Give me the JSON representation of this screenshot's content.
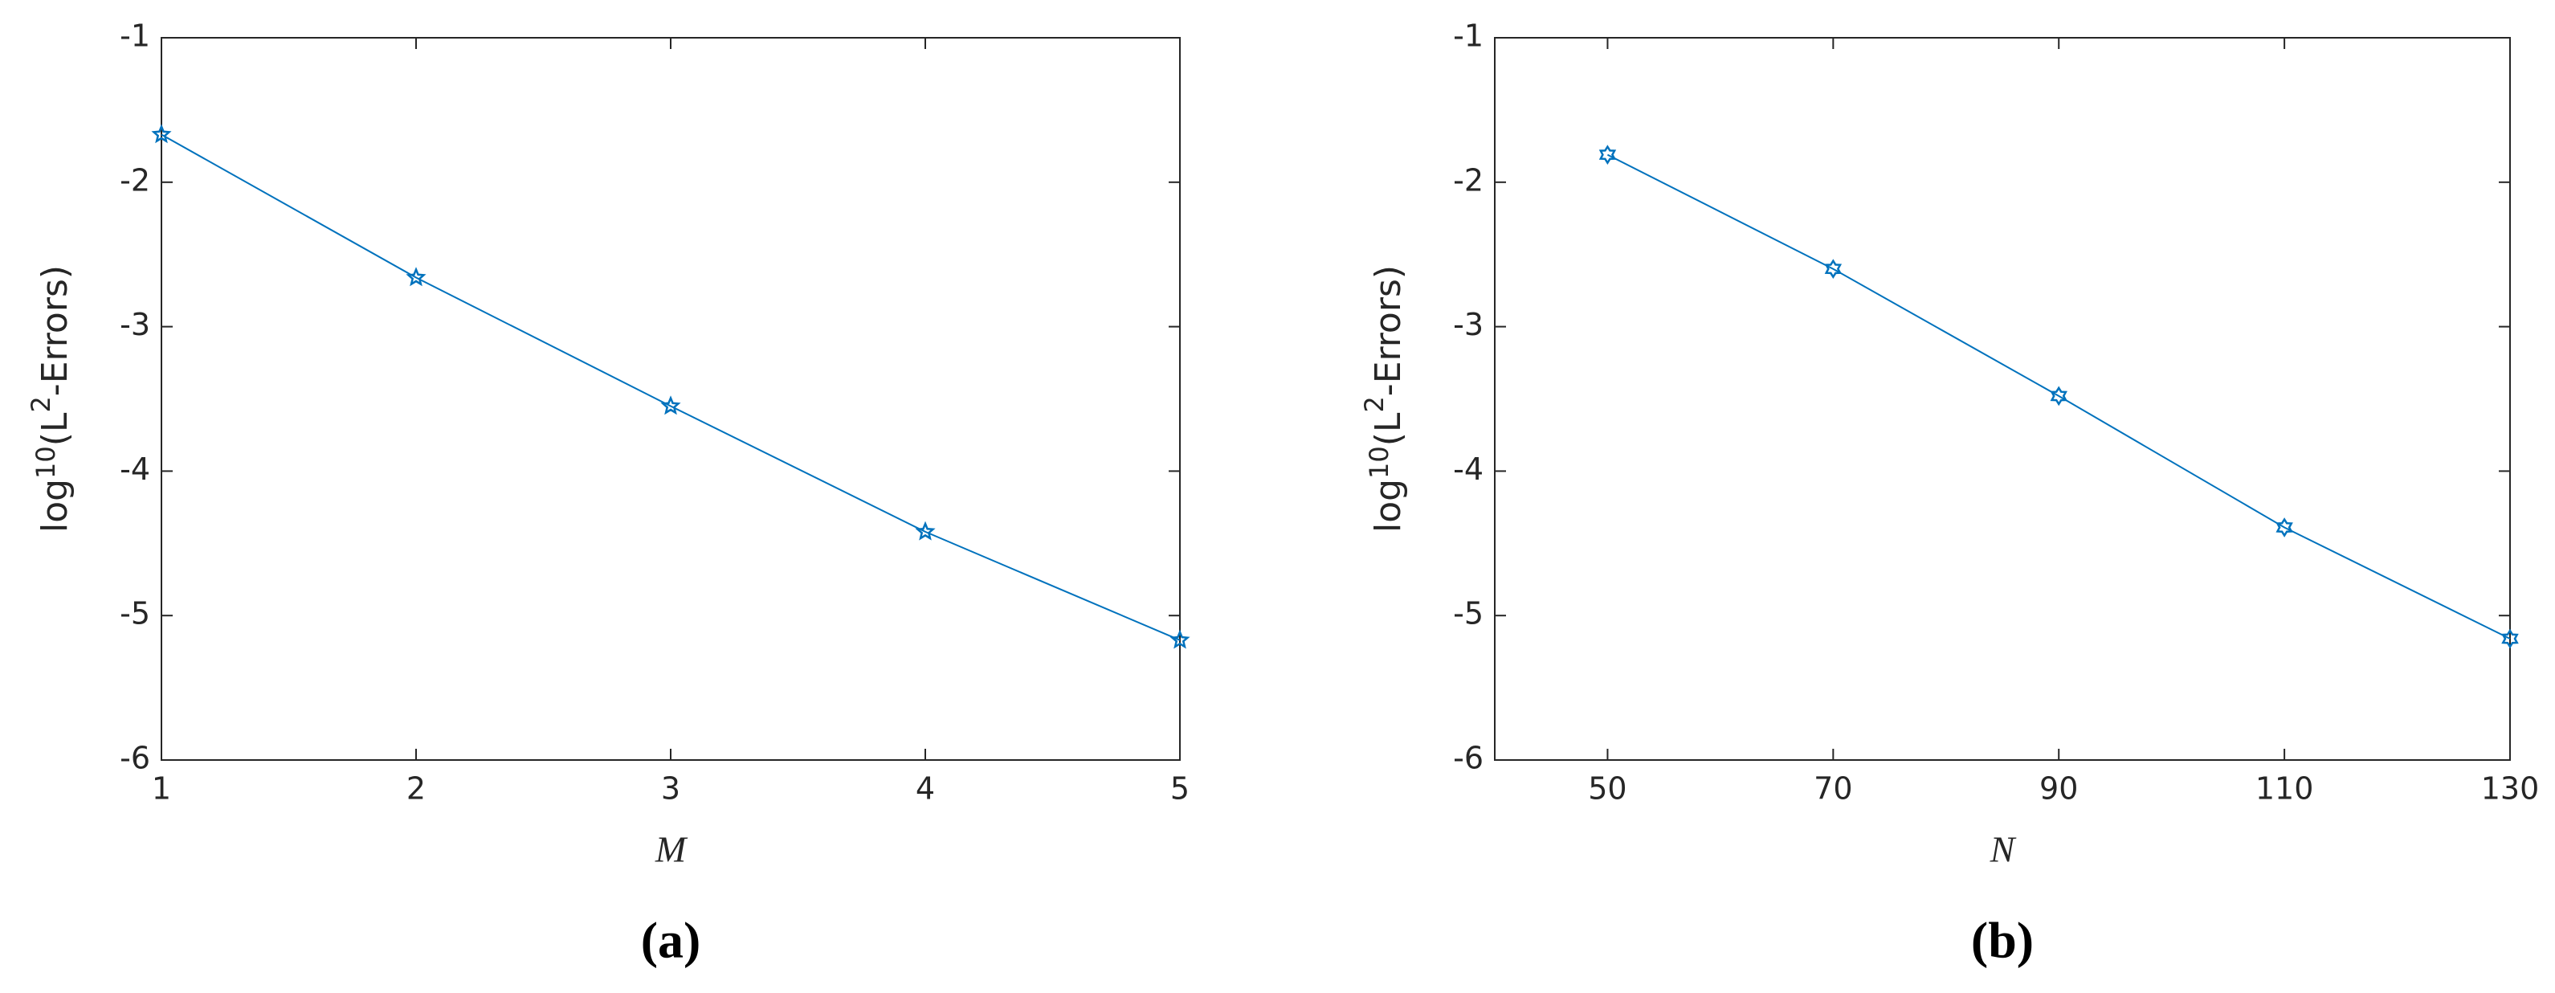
{
  "chart_data": [
    {
      "type": "line",
      "caption": "(a)",
      "xlabel": "M",
      "ylabel": [
        "log",
        "10",
        "(L",
        "2",
        "-Errors)"
      ],
      "x": [
        1,
        2,
        3,
        4,
        5
      ],
      "series": [
        {
          "color": "#0072bd",
          "marker": "pentagram",
          "values": [
            -1.67,
            -2.66,
            -3.55,
            -4.42,
            -5.17
          ]
        }
      ],
      "xlim": [
        1,
        5
      ],
      "xticks": [
        1,
        2,
        3,
        4,
        5
      ],
      "ylim": [
        -6,
        -1
      ],
      "yticks": [
        -6,
        -5,
        -4,
        -3,
        -2,
        -1
      ]
    },
    {
      "type": "line",
      "caption": "(b)",
      "xlabel": "N",
      "ylabel": [
        "log",
        "10",
        "(L",
        "2",
        "-Errors)"
      ],
      "x": [
        50,
        70,
        90,
        110,
        130
      ],
      "series": [
        {
          "color": "#0072bd",
          "marker": "hexagram",
          "values": [
            -1.81,
            -2.6,
            -3.48,
            -4.39,
            -5.16
          ]
        }
      ],
      "xlim": [
        40,
        130
      ],
      "xticks": [
        50,
        70,
        90,
        110,
        130
      ],
      "ylim": [
        -6,
        -1
      ],
      "yticks": [
        -6,
        -5,
        -4,
        -3,
        -2,
        -1
      ]
    }
  ]
}
